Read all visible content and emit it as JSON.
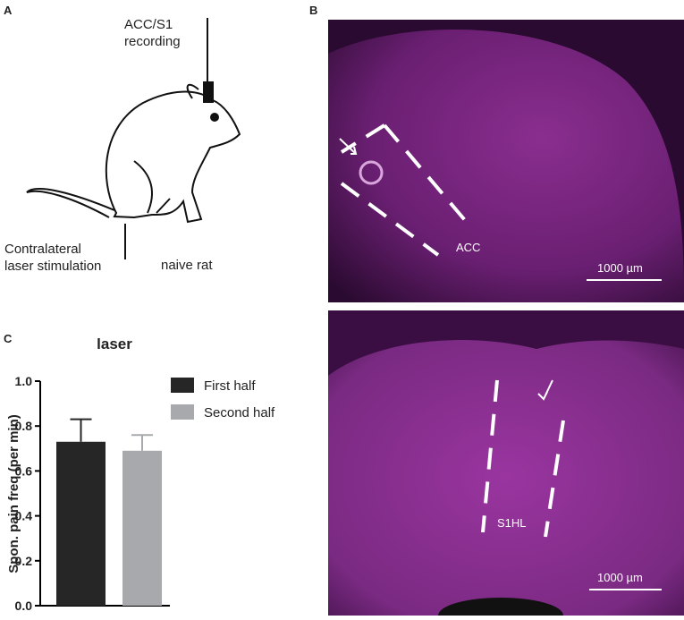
{
  "panel_labels": [
    "A",
    "B",
    "C"
  ],
  "diagram": {
    "electrode_label": "ACC/S1\nrecording",
    "stimulation_label": "Contralateral\nlaser stimulation",
    "animal_label": "naive rat"
  },
  "micrographs": [
    {
      "region_label": "ACC",
      "scale_label": "1000 µm"
    },
    {
      "region_label": "S1HL",
      "scale_label": "1000 µm"
    }
  ],
  "chart_data": {
    "type": "bar",
    "title": "laser",
    "y_label": "Spon. pain freq (per min)",
    "series": [
      {
        "name": "First half",
        "color": "#262626",
        "values": [
          0.73
        ],
        "errors": [
          0.1
        ]
      },
      {
        "name": "Second half",
        "color": "#a7a9ac",
        "values": [
          0.69
        ],
        "errors": [
          0.07
        ]
      }
    ],
    "ylim": [
      0,
      1.0
    ],
    "yticks": [
      {
        "value": 0,
        "label": "0.0"
      },
      0.2,
      0.4,
      0.6,
      0.8,
      {
        "value": 1.0,
        "label": "1.0"
      }
    ]
  }
}
